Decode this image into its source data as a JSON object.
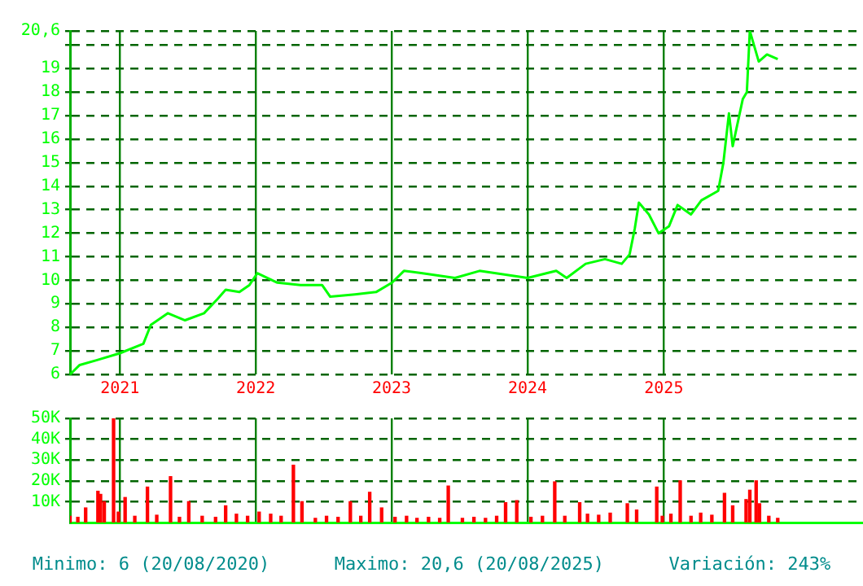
{
  "chart_data": [
    {
      "type": "line",
      "color": "#00ff00",
      "x": [
        "2020-08-20",
        "2020-09-15",
        "2020-10-30",
        "2021-01-01",
        "2021-03-05",
        "2021-03-25",
        "2021-05-10",
        "2021-06-25",
        "2021-08-15",
        "2021-09-20",
        "2021-10-12",
        "2021-11-18",
        "2021-12-15",
        "2022-01-05",
        "2022-02-28",
        "2022-05-01",
        "2022-06-28",
        "2022-07-20",
        "2022-09-24",
        "2022-11-20",
        "2023-01-02",
        "2023-02-03",
        "2023-03-25",
        "2023-06-20",
        "2023-08-25",
        "2024-01-01",
        "2024-03-18",
        "2024-04-15",
        "2024-06-05",
        "2024-07-27",
        "2024-09-10",
        "2024-10-01",
        "2024-10-15",
        "2024-10-26",
        "2024-11-22",
        "2024-12-18",
        "2025-01-15",
        "2025-02-07",
        "2025-03-15",
        "2025-04-12",
        "2025-05-27",
        "2025-06-10",
        "2025-06-25",
        "2025-07-05",
        "2025-08-01",
        "2025-08-12",
        "2025-08-20",
        "2025-09-13",
        "2025-10-05",
        "2025-11-03"
      ],
      "values": [
        6.0,
        6.4,
        6.6,
        6.9,
        7.3,
        8.1,
        8.6,
        8.3,
        8.6,
        9.2,
        9.6,
        9.5,
        9.8,
        10.3,
        9.9,
        9.8,
        9.8,
        9.3,
        9.4,
        9.5,
        9.9,
        10.4,
        10.3,
        10.1,
        10.4,
        10.1,
        10.4,
        10.1,
        10.7,
        10.9,
        10.7,
        11.1,
        12.2,
        13.3,
        12.8,
        12.0,
        12.3,
        13.2,
        12.8,
        13.4,
        13.8,
        15.0,
        17.1,
        15.7,
        17.7,
        18.0,
        20.6,
        19.3,
        19.6,
        19.4
      ],
      "xlim": [
        "2020-08-20",
        "2026-06-20"
      ],
      "xticks": [
        {
          "value": "2021-01-01",
          "label": "2021"
        },
        {
          "value": "2022-01-01",
          "label": "2022"
        },
        {
          "value": "2023-01-01",
          "label": "2023"
        },
        {
          "value": "2024-01-01",
          "label": "2024"
        },
        {
          "value": "2025-01-01",
          "label": "2025"
        }
      ],
      "ylim": [
        6,
        20.6
      ],
      "yticks": [
        6,
        7,
        8,
        9,
        10,
        11,
        12,
        13,
        14,
        15,
        16,
        17,
        18,
        19,
        {
          "value": 20,
          "label": null
        },
        {
          "value": 20.6,
          "label": "20,6"
        }
      ],
      "grid": true
    },
    {
      "type": "bar",
      "color": "#ff0000",
      "x": [
        "2020-08-20",
        "2020-09-10",
        "2020-10-01",
        "2020-11-03",
        "2020-11-10",
        "2020-11-20",
        "2020-12-15",
        "2020-12-28",
        "2021-01-15",
        "2021-02-10",
        "2021-03-16",
        "2021-04-10",
        "2021-05-17",
        "2021-06-10",
        "2021-07-05",
        "2021-08-10",
        "2021-09-15",
        "2021-10-12",
        "2021-11-10",
        "2021-12-10",
        "2022-01-10",
        "2022-02-10",
        "2022-03-10",
        "2022-04-12",
        "2022-05-05",
        "2022-06-10",
        "2022-07-10",
        "2022-08-10",
        "2022-09-12",
        "2022-10-10",
        "2022-11-03",
        "2022-12-05",
        "2023-01-10",
        "2023-02-10",
        "2023-03-10",
        "2023-04-10",
        "2023-05-10",
        "2023-06-02",
        "2023-07-10",
        "2023-08-10",
        "2023-09-10",
        "2023-10-10",
        "2023-11-03",
        "2023-12-03",
        "2024-01-10",
        "2024-02-10",
        "2024-03-14",
        "2024-04-10",
        "2024-05-20",
        "2024-06-10",
        "2024-07-10",
        "2024-08-10",
        "2024-09-25",
        "2024-10-20",
        "2024-12-13",
        "2024-12-28",
        "2025-01-20",
        "2025-02-14",
        "2025-03-15",
        "2025-04-10",
        "2025-05-10",
        "2025-06-13",
        "2025-07-05",
        "2025-08-10",
        "2025-08-20",
        "2025-09-06",
        "2025-09-15",
        "2025-10-10",
        "2025-11-03"
      ],
      "values": [
        3000,
        2500,
        7000,
        15000,
        13500,
        10000,
        50000,
        5000,
        12000,
        3000,
        17000,
        3500,
        22000,
        2500,
        10000,
        3000,
        2500,
        8000,
        4000,
        3000,
        5000,
        4000,
        3000,
        27500,
        10000,
        2000,
        3000,
        2500,
        10000,
        3000,
        14500,
        7000,
        2500,
        3000,
        2000,
        2500,
        2000,
        17500,
        2000,
        2500,
        2000,
        3000,
        9500,
        10500,
        2500,
        3000,
        19500,
        3000,
        9500,
        4000,
        3500,
        4500,
        9000,
        6000,
        17000,
        3000,
        4000,
        20000,
        3000,
        4500,
        3500,
        14000,
        8000,
        11000,
        15500,
        20000,
        9000,
        3000,
        2000
      ],
      "xlim": [
        "2020-08-20",
        "2026-06-20"
      ],
      "xticks": [
        {
          "value": "2021-01-01",
          "label": null
        },
        {
          "value": "2022-01-01",
          "label": null
        },
        {
          "value": "2023-01-01",
          "label": null
        },
        {
          "value": "2024-01-01",
          "label": null
        },
        {
          "value": "2025-01-01",
          "label": null
        }
      ],
      "tick_labels": "y",
      "ylim": [
        0,
        50000
      ],
      "yticks": [
        {
          "value": 10000,
          "label": "10K"
        },
        {
          "value": 20000,
          "label": "20K"
        },
        {
          "value": 30000,
          "label": "30K"
        },
        {
          "value": 40000,
          "label": "40K"
        },
        {
          "value": 50000,
          "label": "50K"
        }
      ],
      "grid": true,
      "annotations": [
        "Minimo: 6 (20/08/2020)",
        "Maximo: 20,6 (20/08/2025)",
        "Variación: 243%"
      ]
    }
  ]
}
